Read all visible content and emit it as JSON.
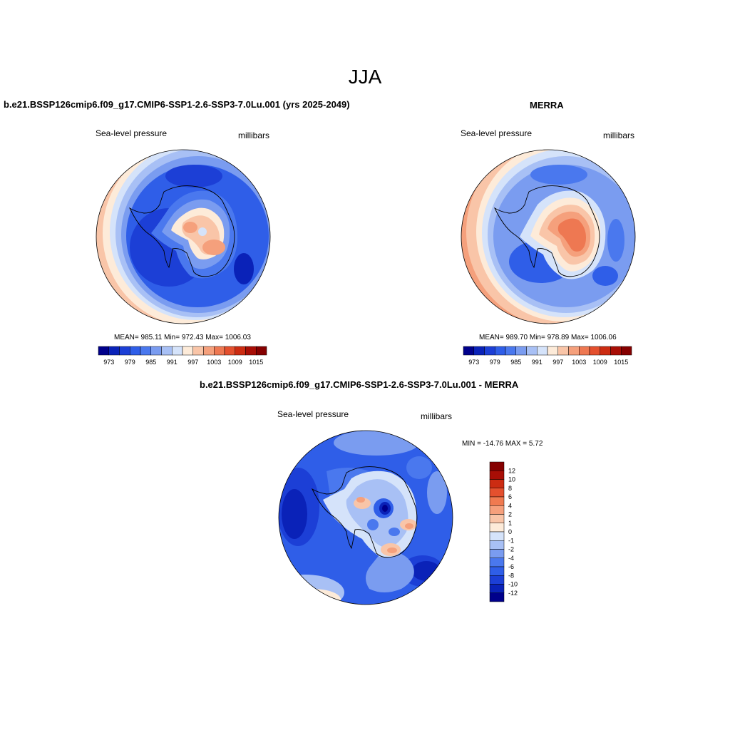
{
  "main_title": "JJA",
  "units": "millibars",
  "variable": "Sea-level pressure",
  "panels": {
    "model": {
      "title": "b.e21.BSSP126cmip6.f09_g17.CMIP6-SSP1-2.6-SSP3-7.0Lu.001 (yrs 2025-2049)",
      "variable": "Sea-level pressure",
      "units": "millibars",
      "stats": "MEAN= 985.11  Min= 972.43  Max= 1006.03"
    },
    "obs": {
      "title": "MERRA",
      "variable": "Sea-level pressure",
      "units": "millibars",
      "stats": "MEAN= 989.70  Min= 978.89  Max= 1006.06"
    },
    "diff": {
      "title": "b.e21.BSSP126cmip6.f09_g17.CMIP6-SSP1-2.6-SSP3-7.0Lu.001 - MERRA",
      "variable": "Sea-level pressure",
      "units": "millibars",
      "stats": "MIN = -14.76 MAX =   5.72"
    }
  },
  "colorbar_abs": {
    "colors": [
      "#00008b",
      "#0a22b8",
      "#1c3fd6",
      "#2f5ee8",
      "#4a78ee",
      "#7a9cf0",
      "#a8c0f5",
      "#d5e3fa",
      "#fdebd9",
      "#f9c5a8",
      "#f5a07c",
      "#ee7852",
      "#e4502e",
      "#cc2c12",
      "#a80e06",
      "#850000"
    ],
    "labels": [
      "973",
      "979",
      "985",
      "991",
      "997",
      "1003",
      "1009",
      "1015"
    ]
  },
  "colorbar_diff": {
    "colors": [
      "#850000",
      "#a80e06",
      "#cc2c12",
      "#e4502e",
      "#f07a50",
      "#f6a07c",
      "#f9c5a8",
      "#fdebd9",
      "#d5e3fa",
      "#a8c0f5",
      "#7a9cf0",
      "#4a78ee",
      "#2f5ee8",
      "#1c3fd6",
      "#0a22b8",
      "#00008b"
    ],
    "labels": [
      "12",
      "10",
      "8",
      "6",
      "4",
      "2",
      "1",
      "0",
      "-1",
      "-2",
      "-4",
      "-6",
      "-8",
      "-10",
      "-12"
    ]
  },
  "map_colors": {
    "deep": "#00008b",
    "dark": "#0a22b8",
    "blue": "#1c3fd6",
    "mid": "#2f5ee8",
    "medium": "#4a78ee",
    "light": "#7a9cf0",
    "pale": "#a8c0f5",
    "paler": "#d5e3fa",
    "cream": "#fdebd9",
    "peach": "#f9c5a8",
    "salmon": "#f5a07c",
    "orange": "#ee7852"
  }
}
